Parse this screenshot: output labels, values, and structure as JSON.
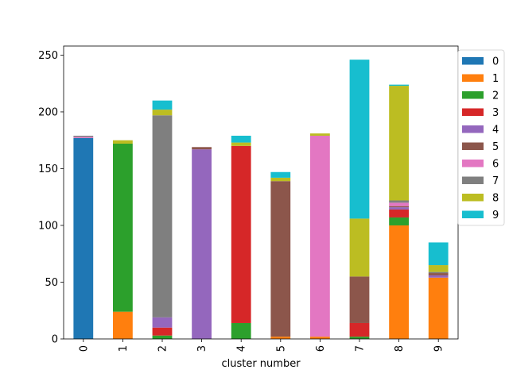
{
  "chart_data": {
    "type": "bar",
    "stacked": true,
    "categories": [
      "0",
      "1",
      "2",
      "3",
      "4",
      "5",
      "6",
      "7",
      "8",
      "9"
    ],
    "xlabel": "cluster number",
    "ylabel": "",
    "title": "",
    "ylim": [
      0,
      258
    ],
    "yticks": [
      0,
      50,
      100,
      150,
      200,
      250
    ],
    "legend_placement": "outside-top-right",
    "series": [
      {
        "name": "0",
        "color": "#1f77b4",
        "values": [
          177,
          0,
          0,
          0,
          0,
          0,
          0,
          0,
          0,
          0
        ]
      },
      {
        "name": "1",
        "color": "#ff7f0e",
        "values": [
          0,
          24,
          0,
          0,
          0,
          2,
          2,
          0,
          100,
          54
        ]
      },
      {
        "name": "2",
        "color": "#2ca02c",
        "values": [
          0,
          148,
          3,
          0,
          14,
          0,
          0,
          2,
          7,
          0
        ]
      },
      {
        "name": "3",
        "color": "#d62728",
        "values": [
          0,
          0,
          7,
          0,
          156,
          0,
          0,
          12,
          7,
          0
        ]
      },
      {
        "name": "4",
        "color": "#9467bd",
        "values": [
          0,
          0,
          9,
          167,
          0,
          0,
          0,
          0,
          2,
          2
        ]
      },
      {
        "name": "5",
        "color": "#8c564b",
        "values": [
          0,
          0,
          0,
          2,
          0,
          137,
          0,
          41,
          1,
          2
        ]
      },
      {
        "name": "6",
        "color": "#e377c2",
        "values": [
          1,
          0,
          0,
          0,
          0,
          0,
          177,
          0,
          3,
          0
        ]
      },
      {
        "name": "7",
        "color": "#7f7f7f",
        "values": [
          1,
          0,
          178,
          0,
          0,
          0,
          0,
          0,
          2,
          1
        ]
      },
      {
        "name": "8",
        "color": "#bcbd22",
        "values": [
          0,
          3,
          5,
          0,
          3,
          3,
          2,
          51,
          101,
          6
        ]
      },
      {
        "name": "9",
        "color": "#17becf",
        "values": [
          0,
          0,
          8,
          0,
          6,
          5,
          0,
          140,
          1,
          20
        ]
      }
    ]
  }
}
